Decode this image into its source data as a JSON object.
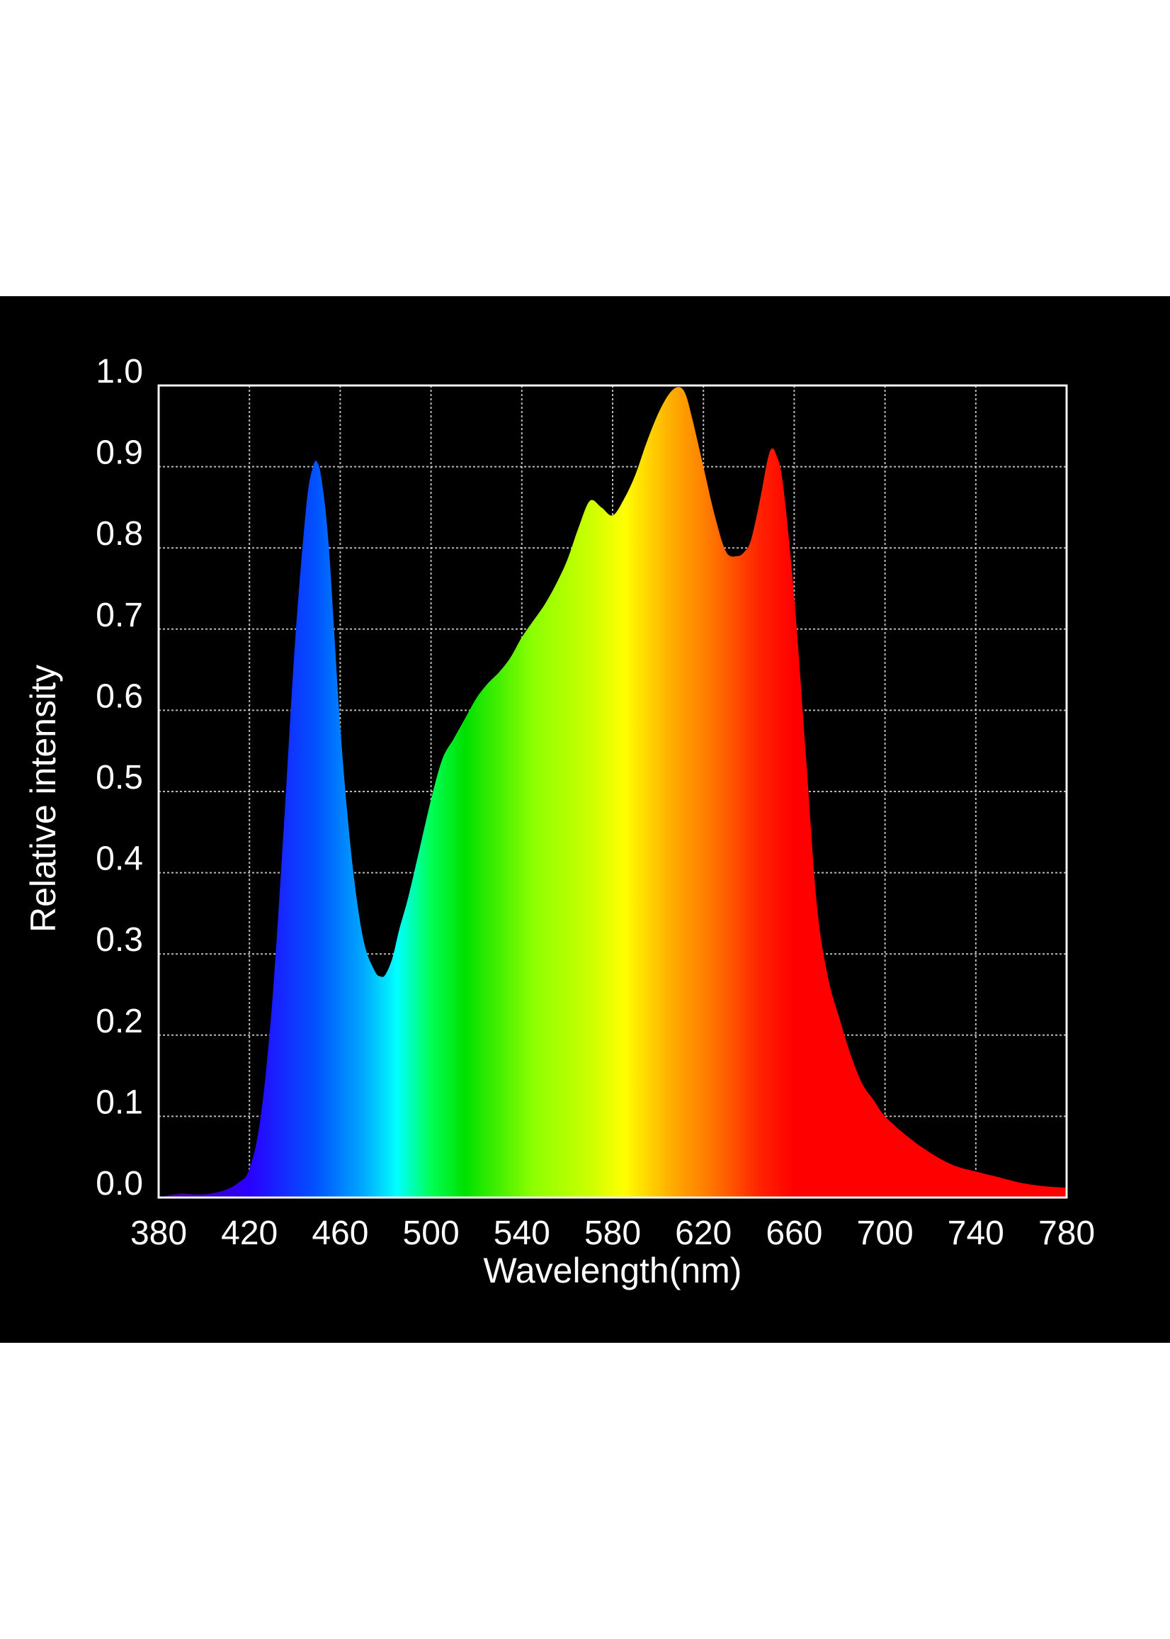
{
  "chart_data": {
    "type": "area",
    "title": "",
    "xlabel": "Wavelength(nm)",
    "ylabel": "Relative intensity",
    "xlim": [
      380,
      780
    ],
    "ylim": [
      0.0,
      1.0
    ],
    "grid": true,
    "legend": "none",
    "xticks": [
      380,
      420,
      460,
      500,
      540,
      580,
      620,
      660,
      700,
      740,
      780
    ],
    "xtick_labels": [
      "380",
      "420",
      "460",
      "500",
      "540",
      "580",
      "620",
      "660",
      "700",
      "740",
      "780"
    ],
    "yticks": [
      0.0,
      0.1,
      0.2,
      0.3,
      0.4,
      0.5,
      0.6,
      0.7,
      0.8,
      0.9,
      1.0
    ],
    "ytick_labels": [
      "0.0",
      "0.1",
      "0.2",
      "0.3",
      "0.4",
      "0.5",
      "0.6",
      "0.7",
      "0.8",
      "0.9",
      "1.0"
    ],
    "x": [
      380,
      385,
      390,
      395,
      400,
      405,
      410,
      415,
      420,
      425,
      430,
      435,
      440,
      445,
      448,
      450,
      452,
      455,
      460,
      465,
      470,
      475,
      478,
      480,
      483,
      486,
      490,
      495,
      500,
      505,
      510,
      515,
      520,
      525,
      530,
      535,
      540,
      545,
      550,
      555,
      560,
      565,
      570,
      575,
      580,
      585,
      590,
      595,
      600,
      605,
      609,
      612,
      615,
      620,
      625,
      630,
      635,
      638,
      641,
      645,
      648,
      650,
      652,
      655,
      660,
      665,
      670,
      675,
      680,
      685,
      690,
      695,
      700,
      710,
      720,
      730,
      740,
      750,
      760,
      770,
      780
    ],
    "values": [
      0.0,
      0.003,
      0.005,
      0.004,
      0.004,
      0.006,
      0.01,
      0.018,
      0.035,
      0.1,
      0.24,
      0.45,
      0.68,
      0.85,
      0.9,
      0.905,
      0.88,
      0.8,
      0.58,
      0.42,
      0.32,
      0.28,
      0.272,
      0.275,
      0.295,
      0.33,
      0.37,
      0.43,
      0.49,
      0.54,
      0.565,
      0.59,
      0.615,
      0.633,
      0.647,
      0.665,
      0.69,
      0.71,
      0.73,
      0.755,
      0.785,
      0.825,
      0.858,
      0.85,
      0.84,
      0.86,
      0.89,
      0.93,
      0.965,
      0.99,
      0.998,
      0.99,
      0.96,
      0.9,
      0.84,
      0.795,
      0.79,
      0.795,
      0.81,
      0.86,
      0.905,
      0.922,
      0.915,
      0.88,
      0.74,
      0.55,
      0.36,
      0.27,
      0.22,
      0.175,
      0.14,
      0.12,
      0.1,
      0.075,
      0.055,
      0.04,
      0.032,
      0.025,
      0.018,
      0.014,
      0.012
    ],
    "colors": {
      "background": "#000000",
      "axis_text": "#ffffff",
      "grid": "#d8d8d8",
      "spectrum_stops": [
        {
          "nm": 380,
          "color": "#4b0082"
        },
        {
          "nm": 420,
          "color": "#2a00ff"
        },
        {
          "nm": 450,
          "color": "#0055ff"
        },
        {
          "nm": 470,
          "color": "#00a8ff"
        },
        {
          "nm": 485,
          "color": "#00ffff"
        },
        {
          "nm": 500,
          "color": "#00ff55"
        },
        {
          "nm": 515,
          "color": "#00e000"
        },
        {
          "nm": 545,
          "color": "#8cff00"
        },
        {
          "nm": 570,
          "color": "#ccff00"
        },
        {
          "nm": 585,
          "color": "#ffff00"
        },
        {
          "nm": 605,
          "color": "#ffb000"
        },
        {
          "nm": 625,
          "color": "#ff7000"
        },
        {
          "nm": 645,
          "color": "#ff2200"
        },
        {
          "nm": 660,
          "color": "#ff0000"
        },
        {
          "nm": 780,
          "color": "#ff0000"
        }
      ]
    }
  }
}
